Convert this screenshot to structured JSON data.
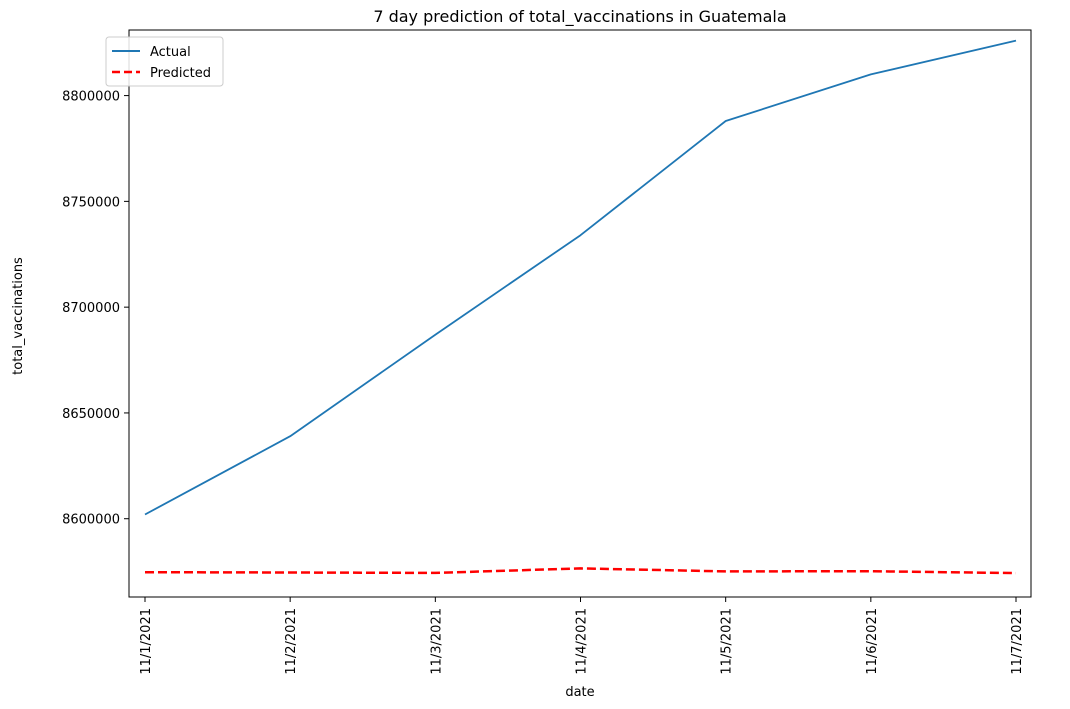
{
  "chart_data": {
    "type": "line",
    "title": "7 day prediction of total_vaccinations in Guatemala",
    "xlabel": "date",
    "ylabel": "total_vaccinations",
    "x": [
      "11/1/2021",
      "11/2/2021",
      "11/3/2021",
      "11/4/2021",
      "11/5/2021",
      "11/6/2021",
      "11/7/2021"
    ],
    "yticks": [
      "8600000",
      "8650000",
      "8700000",
      "8750000",
      "8800000"
    ],
    "ylim": [
      8563000,
      8831000
    ],
    "legend_position": "upper-left",
    "grid": false,
    "series": [
      {
        "name": "Actual",
        "color": "#1f77b4",
        "style": "solid",
        "values": [
          8602000,
          8639000,
          8687000,
          8734000,
          8788000,
          8810000,
          8826000
        ]
      },
      {
        "name": "Predicted",
        "color": "#ff0000",
        "style": "dashed",
        "values": [
          8574700,
          8574600,
          8574400,
          8576500,
          8575100,
          8575200,
          8574300
        ]
      }
    ]
  }
}
